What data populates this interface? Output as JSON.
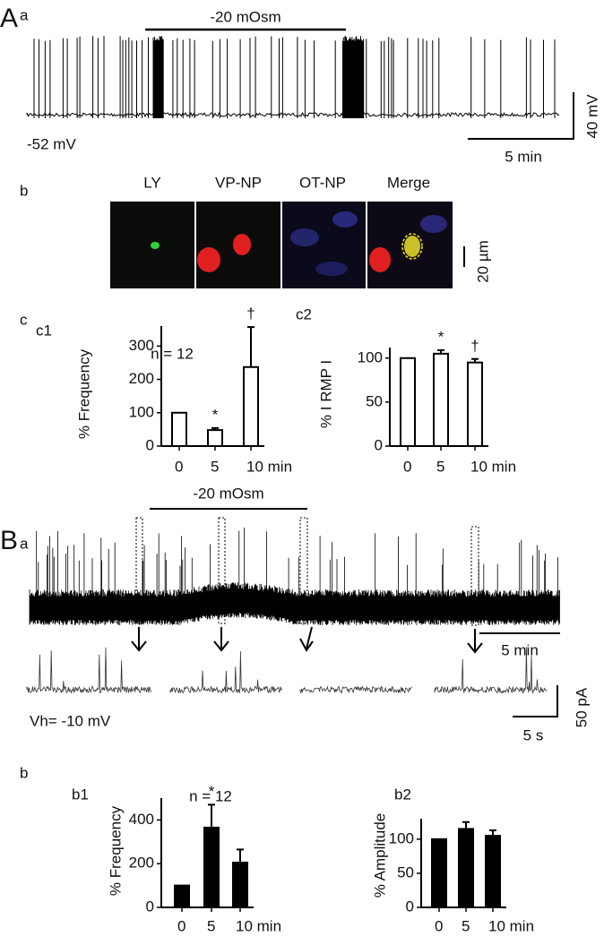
{
  "panel_labels": {
    "A": "A",
    "A_a": "a",
    "A_b": "b",
    "A_c": "c",
    "B": "B",
    "B_a": "a",
    "B_b": "b"
  },
  "trace_A": {
    "stimulus": "-20 mOsm",
    "potential": "-52 mV",
    "scale_y": "40 mV",
    "scale_x": "5 min"
  },
  "images": {
    "labels": [
      "LY",
      "VP-NP",
      "OT-NP",
      "Merge"
    ],
    "scale": "20 µm"
  },
  "trace_B": {
    "stimulus": "-20 mOsm",
    "scale_x": "5 min",
    "holding": "Vh= -10 mV",
    "inset_scale_y": "50 pA",
    "inset_scale_x": "5 s"
  },
  "chart_data": [
    {
      "type": "bar",
      "subtitle": "c1",
      "annotation": "n = 12",
      "ylabel": "% Frequency",
      "categories": [
        "0",
        "5",
        "10 min"
      ],
      "values": [
        100,
        48,
        237
      ],
      "errors": [
        0,
        6,
        120
      ],
      "significance": [
        null,
        "*",
        "†"
      ],
      "ylim": [
        0,
        360
      ],
      "yticks": [
        0,
        100,
        200,
        300
      ],
      "color": "#ffffff"
    },
    {
      "type": "bar",
      "subtitle": "c2",
      "ylabel": "% I RMP I",
      "categories": [
        "0",
        "5",
        "10 min"
      ],
      "values": [
        100,
        105,
        95
      ],
      "errors": [
        0,
        4,
        4
      ],
      "significance": [
        null,
        "*",
        "†"
      ],
      "ylim": [
        0,
        112
      ],
      "yticks": [
        0,
        50,
        100
      ],
      "color": "#ffffff"
    },
    {
      "type": "bar",
      "subtitle": "b1",
      "annotation": "n = 12",
      "ylabel": "% Frequency",
      "categories": [
        "0",
        "5",
        "10 min"
      ],
      "values": [
        100,
        365,
        205
      ],
      "errors": [
        0,
        105,
        60
      ],
      "significance": [
        null,
        "*",
        null
      ],
      "ylim": [
        0,
        500
      ],
      "yticks": [
        0,
        200,
        400
      ],
      "color": "#000000"
    },
    {
      "type": "bar",
      "subtitle": "b2",
      "ylabel": "% Amplitude",
      "categories": [
        "0",
        "5",
        "10 min"
      ],
      "values": [
        100,
        115,
        105
      ],
      "errors": [
        0,
        10,
        8
      ],
      "significance": [
        null,
        null,
        null
      ],
      "ylim": [
        0,
        130
      ],
      "yticks": [
        0,
        50,
        100
      ],
      "color": "#000000"
    }
  ]
}
